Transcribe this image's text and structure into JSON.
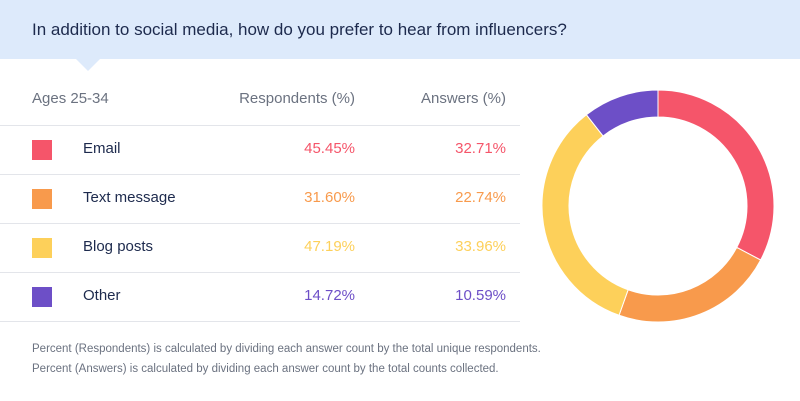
{
  "header": {
    "title": "In addition to social media, how do you prefer to hear from influencers?"
  },
  "table": {
    "age_label": "Ages 25-34",
    "respondents_header": "Respondents (%)",
    "answers_header": "Answers (%)",
    "rows": [
      {
        "label": "Email",
        "respondents": "45.45%",
        "answers": "32.71%",
        "color": "#f5556a"
      },
      {
        "label": "Text message",
        "respondents": "31.60%",
        "answers": "22.74%",
        "color": "#f89a4c"
      },
      {
        "label": "Blog posts",
        "respondents": "47.19%",
        "answers": "33.96%",
        "color": "#fdd05a"
      },
      {
        "label": "Other",
        "respondents": "14.72%",
        "answers": "10.59%",
        "color": "#6d4fc7"
      }
    ]
  },
  "footnotes": {
    "respondents_note": "Percent (Respondents) is calculated by dividing each answer count by the total unique respondents.",
    "answers_note": "Percent (Answers) is calculated by dividing each answer count by the total counts collected."
  },
  "chart_data": {
    "type": "pie",
    "variant": "donut",
    "title": "In addition to social media, how do you prefer to hear from influencers?",
    "categories": [
      "Email",
      "Text message",
      "Blog posts",
      "Other"
    ],
    "values": [
      32.71,
      22.74,
      33.96,
      10.59
    ],
    "colors": [
      "#f5556a",
      "#f89a4c",
      "#fdd05a",
      "#6d4fc7"
    ]
  }
}
